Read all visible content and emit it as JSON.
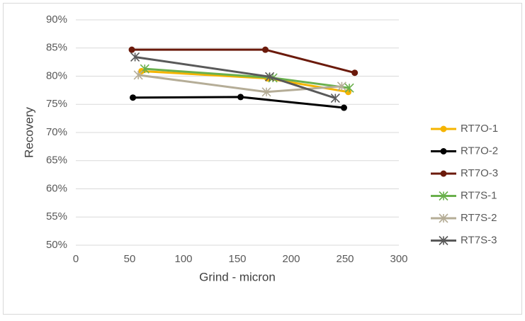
{
  "chart_data": {
    "type": "line",
    "x_label": "Grind - micron",
    "y_label": "Recovery",
    "xlim": [
      0,
      300
    ],
    "xticks": [
      0,
      50,
      100,
      150,
      200,
      250,
      300
    ],
    "ylim": [
      50,
      90
    ],
    "yticks": [
      {
        "value": 50,
        "label": "50%"
      },
      {
        "value": 55,
        "label": "55%"
      },
      {
        "value": 60,
        "label": "60%"
      },
      {
        "value": 65,
        "label": "65%"
      },
      {
        "value": 70,
        "label": "70%"
      },
      {
        "value": 75,
        "label": "75%"
      },
      {
        "value": 80,
        "label": "80%"
      },
      {
        "value": 85,
        "label": "85%"
      },
      {
        "value": 90,
        "label": "90%"
      }
    ],
    "grid": true,
    "legend": "right",
    "series": [
      {
        "name": "RT7O-1",
        "color": "#f5b400",
        "marker": "circle",
        "x": [
          61,
          178,
          253
        ],
        "values": [
          80.9,
          79.6,
          77.2
        ]
      },
      {
        "name": "RT7O-2",
        "color": "#000000",
        "marker": "circle",
        "x": [
          53,
          153,
          249
        ],
        "values": [
          76.2,
          76.3,
          74.4
        ]
      },
      {
        "name": "RT7O-3",
        "color": "#6b1a0b",
        "marker": "circle",
        "x": [
          52,
          176,
          259
        ],
        "values": [
          84.7,
          84.7,
          80.6
        ]
      },
      {
        "name": "RT7S-1",
        "color": "#6ab04c",
        "marker": "star",
        "x": [
          64,
          183,
          254
        ],
        "values": [
          81.3,
          79.7,
          77.9
        ]
      },
      {
        "name": "RT7S-2",
        "color": "#b5ad97",
        "marker": "star",
        "x": [
          58,
          177,
          247
        ],
        "values": [
          80.2,
          77.2,
          78.2
        ]
      },
      {
        "name": "RT7S-3",
        "color": "#595959",
        "marker": "star",
        "x": [
          55,
          180,
          241
        ],
        "values": [
          83.4,
          79.9,
          76.1
        ]
      }
    ]
  }
}
